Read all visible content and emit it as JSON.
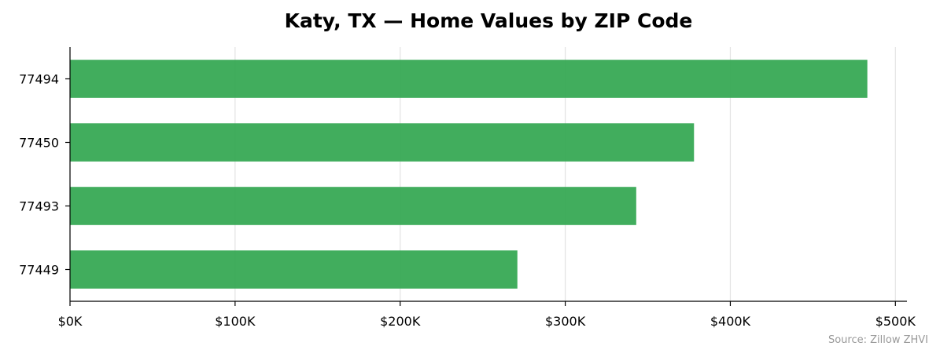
{
  "chart_data": {
    "type": "bar",
    "orientation": "horizontal",
    "title": "Katy, TX — Home Values by ZIP Code",
    "xlabel": "",
    "ylabel": "",
    "categories": [
      "77494",
      "77450",
      "77493",
      "77449"
    ],
    "values": [
      483000,
      378000,
      343000,
      271000
    ],
    "xlim": [
      0,
      507000
    ],
    "xticks": [
      0,
      100000,
      200000,
      300000,
      400000,
      500000
    ],
    "xtick_labels": [
      "$0K",
      "$100K",
      "$200K",
      "$300K",
      "$400K",
      "$500K"
    ],
    "grid": "vertical",
    "legend": "none",
    "bar_color": "#35a853",
    "source": "Source: Zillow ZHVI"
  }
}
